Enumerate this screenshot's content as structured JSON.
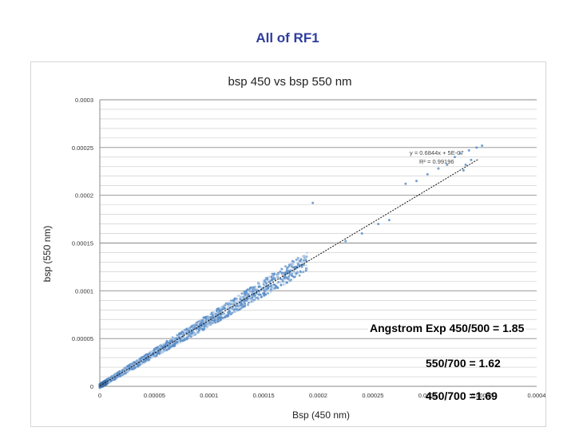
{
  "page": {
    "title": "All of RF1"
  },
  "chart_data": {
    "type": "scatter",
    "title": "bsp 450 vs bsp 550 nm",
    "xlabel": "Bsp (450 nm)",
    "ylabel": "bsp (550 nm)",
    "xlim": [
      0,
      0.0004
    ],
    "ylim": [
      0,
      0.0003
    ],
    "x_ticks": [
      "0",
      "0.00005",
      "0.0001",
      "0.00015",
      "0.0002",
      "0.00025",
      "0.0003",
      "0.00035",
      "0.0004"
    ],
    "y_ticks": [
      "0",
      "0.00005",
      "0.0001",
      "0.00015",
      "0.0002",
      "0.00025",
      "0.0003"
    ],
    "grid": "horizontal",
    "marker_color": "#5b8ec7",
    "trendline": {
      "slope": 0.6844,
      "intercept": 5e-07,
      "equation": "y = 0.6844x + 5E-07",
      "r2": "R² = 0.99196"
    },
    "outliers": [
      {
        "x": 0.00028,
        "y": 0.000212
      },
      {
        "x": 0.00029,
        "y": 0.000215
      },
      {
        "x": 0.0003,
        "y": 0.000222
      },
      {
        "x": 0.00031,
        "y": 0.000228
      },
      {
        "x": 0.000318,
        "y": 0.000232
      },
      {
        "x": 0.000325,
        "y": 0.00024
      },
      {
        "x": 0.00033,
        "y": 0.000244
      },
      {
        "x": 0.000338,
        "y": 0.000247
      },
      {
        "x": 0.000345,
        "y": 0.00025
      },
      {
        "x": 0.00035,
        "y": 0.000252
      },
      {
        "x": 0.00034,
        "y": 0.000237
      },
      {
        "x": 0.000335,
        "y": 0.000232
      },
      {
        "x": 0.000333,
        "y": 0.000226
      },
      {
        "x": 0.000195,
        "y": 0.000192
      },
      {
        "x": 0.000265,
        "y": 0.000174
      },
      {
        "x": 0.000255,
        "y": 0.00017
      },
      {
        "x": 0.00024,
        "y": 0.00016
      },
      {
        "x": 0.000225,
        "y": 0.000152
      },
      {
        "x": 0.00018,
        "y": 0.000118
      },
      {
        "x": 0.000185,
        "y": 0.000125
      },
      {
        "x": 0.000172,
        "y": 0.000113
      }
    ]
  },
  "annotations": {
    "angstrom": "Angstrom Exp  450/500 = 1.85",
    "ratio_550_700": "550/700 = 1.62",
    "ratio_450_700": "450/700 =1.69"
  }
}
